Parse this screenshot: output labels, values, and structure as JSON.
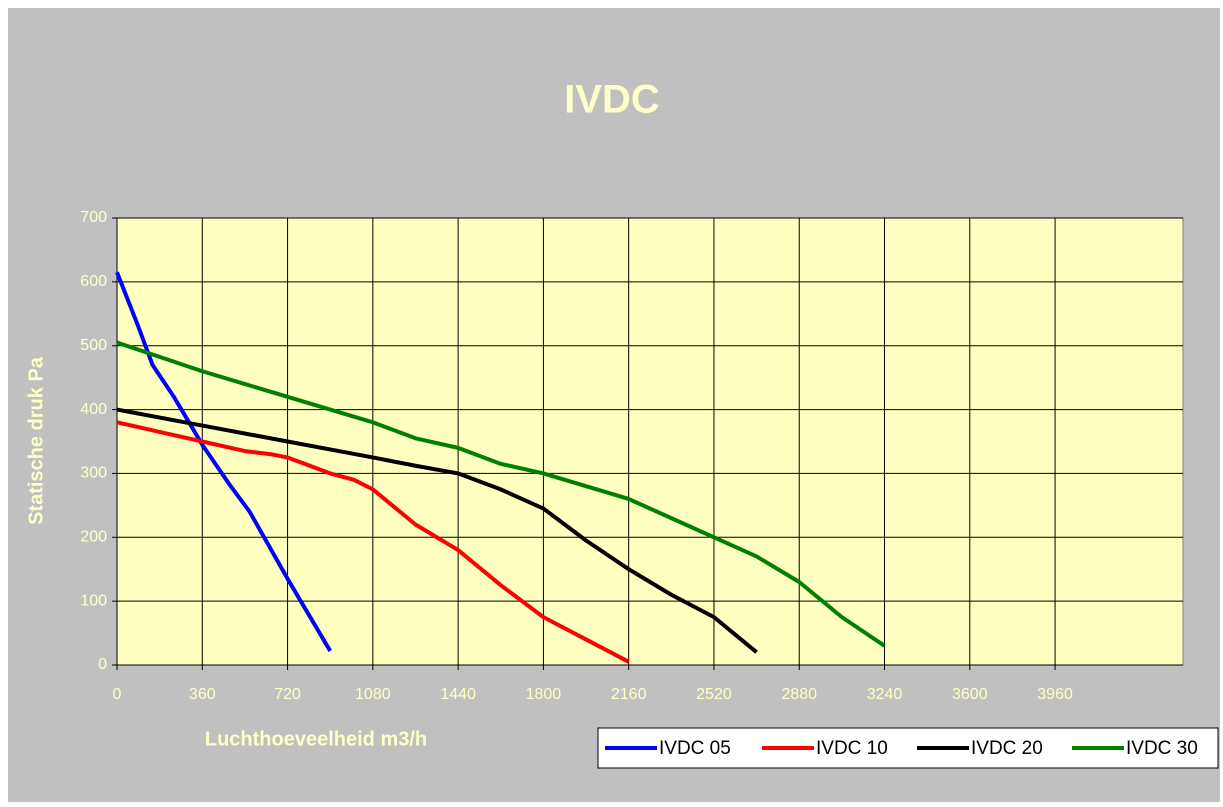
{
  "chart_data": {
    "type": "line",
    "title": "IVDC",
    "xlabel": "Luchthoeveelheid m3/h",
    "ylabel": "Statische druk Pa",
    "xlim": [
      0,
      4500
    ],
    "ylim": [
      0,
      700
    ],
    "xticks": [
      0,
      360,
      720,
      1080,
      1440,
      1800,
      2160,
      2520,
      2880,
      3240,
      3600,
      3960
    ],
    "yticks": [
      0,
      100,
      200,
      300,
      400,
      500,
      600,
      700
    ],
    "grid": true,
    "legend": "bottom-right",
    "series": [
      {
        "name": "IVDC 05",
        "color": "#0000ff",
        "x": [
          0,
          90,
          150,
          240,
          360,
          480,
          560,
          720,
          900
        ],
        "values": [
          615,
          530,
          470,
          420,
          345,
          280,
          240,
          135,
          22
        ]
      },
      {
        "name": "IVDC 10",
        "color": "#ff0000",
        "x": [
          0,
          180,
          360,
          540,
          650,
          720,
          900,
          1000,
          1080,
          1260,
          1440,
          1620,
          1800,
          1980,
          2160
        ],
        "values": [
          380,
          365,
          350,
          335,
          330,
          325,
          300,
          290,
          275,
          220,
          180,
          125,
          75,
          40,
          5
        ]
      },
      {
        "name": "IVDC 20",
        "color": "#000000",
        "x": [
          0,
          360,
          720,
          1080,
          1260,
          1440,
          1620,
          1800,
          1980,
          2160,
          2340,
          2520,
          2700
        ],
        "values": [
          400,
          375,
          350,
          325,
          312,
          300,
          275,
          245,
          195,
          150,
          110,
          75,
          20
        ]
      },
      {
        "name": "IVDC 30",
        "color": "#008000",
        "x": [
          0,
          360,
          720,
          1080,
          1260,
          1440,
          1620,
          1800,
          1980,
          2160,
          2340,
          2520,
          2700,
          2880,
          3060,
          3240
        ],
        "values": [
          505,
          460,
          420,
          380,
          355,
          340,
          315,
          300,
          280,
          260,
          230,
          200,
          170,
          130,
          75,
          30
        ]
      }
    ]
  }
}
